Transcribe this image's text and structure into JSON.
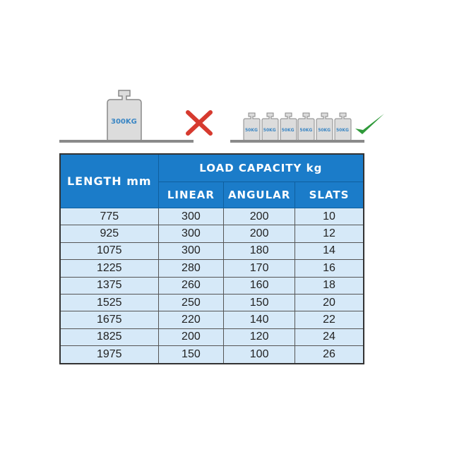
{
  "illustration": {
    "heavy_weight_label": "300KG",
    "light_weight_labels": [
      "50KG",
      "50KG",
      "50KG",
      "50KG",
      "50KG",
      "50KG"
    ],
    "wrong_icon": "red-x-icon",
    "right_icon": "green-checkmark-icon",
    "colors": {
      "wrong": "#d63a2f",
      "right": "#2f9a3a",
      "weight": "#d9d9d9"
    }
  },
  "table": {
    "header_length": "LENGTH mm",
    "header_group": "LOAD CAPACITY kg",
    "subheaders": [
      "LINEAR",
      "ANGULAR",
      "SLATS"
    ],
    "rows": [
      [
        "775",
        "300",
        "200",
        "10"
      ],
      [
        "925",
        "300",
        "200",
        "12"
      ],
      [
        "1075",
        "300",
        "180",
        "14"
      ],
      [
        "1225",
        "280",
        "170",
        "16"
      ],
      [
        "1375",
        "260",
        "160",
        "18"
      ],
      [
        "1525",
        "250",
        "150",
        "20"
      ],
      [
        "1675",
        "220",
        "140",
        "22"
      ],
      [
        "1825",
        "200",
        "120",
        "24"
      ],
      [
        "1975",
        "150",
        "100",
        "26"
      ]
    ],
    "colors": {
      "header": "#1b7cc9",
      "cell": "#d6e9f8"
    }
  }
}
